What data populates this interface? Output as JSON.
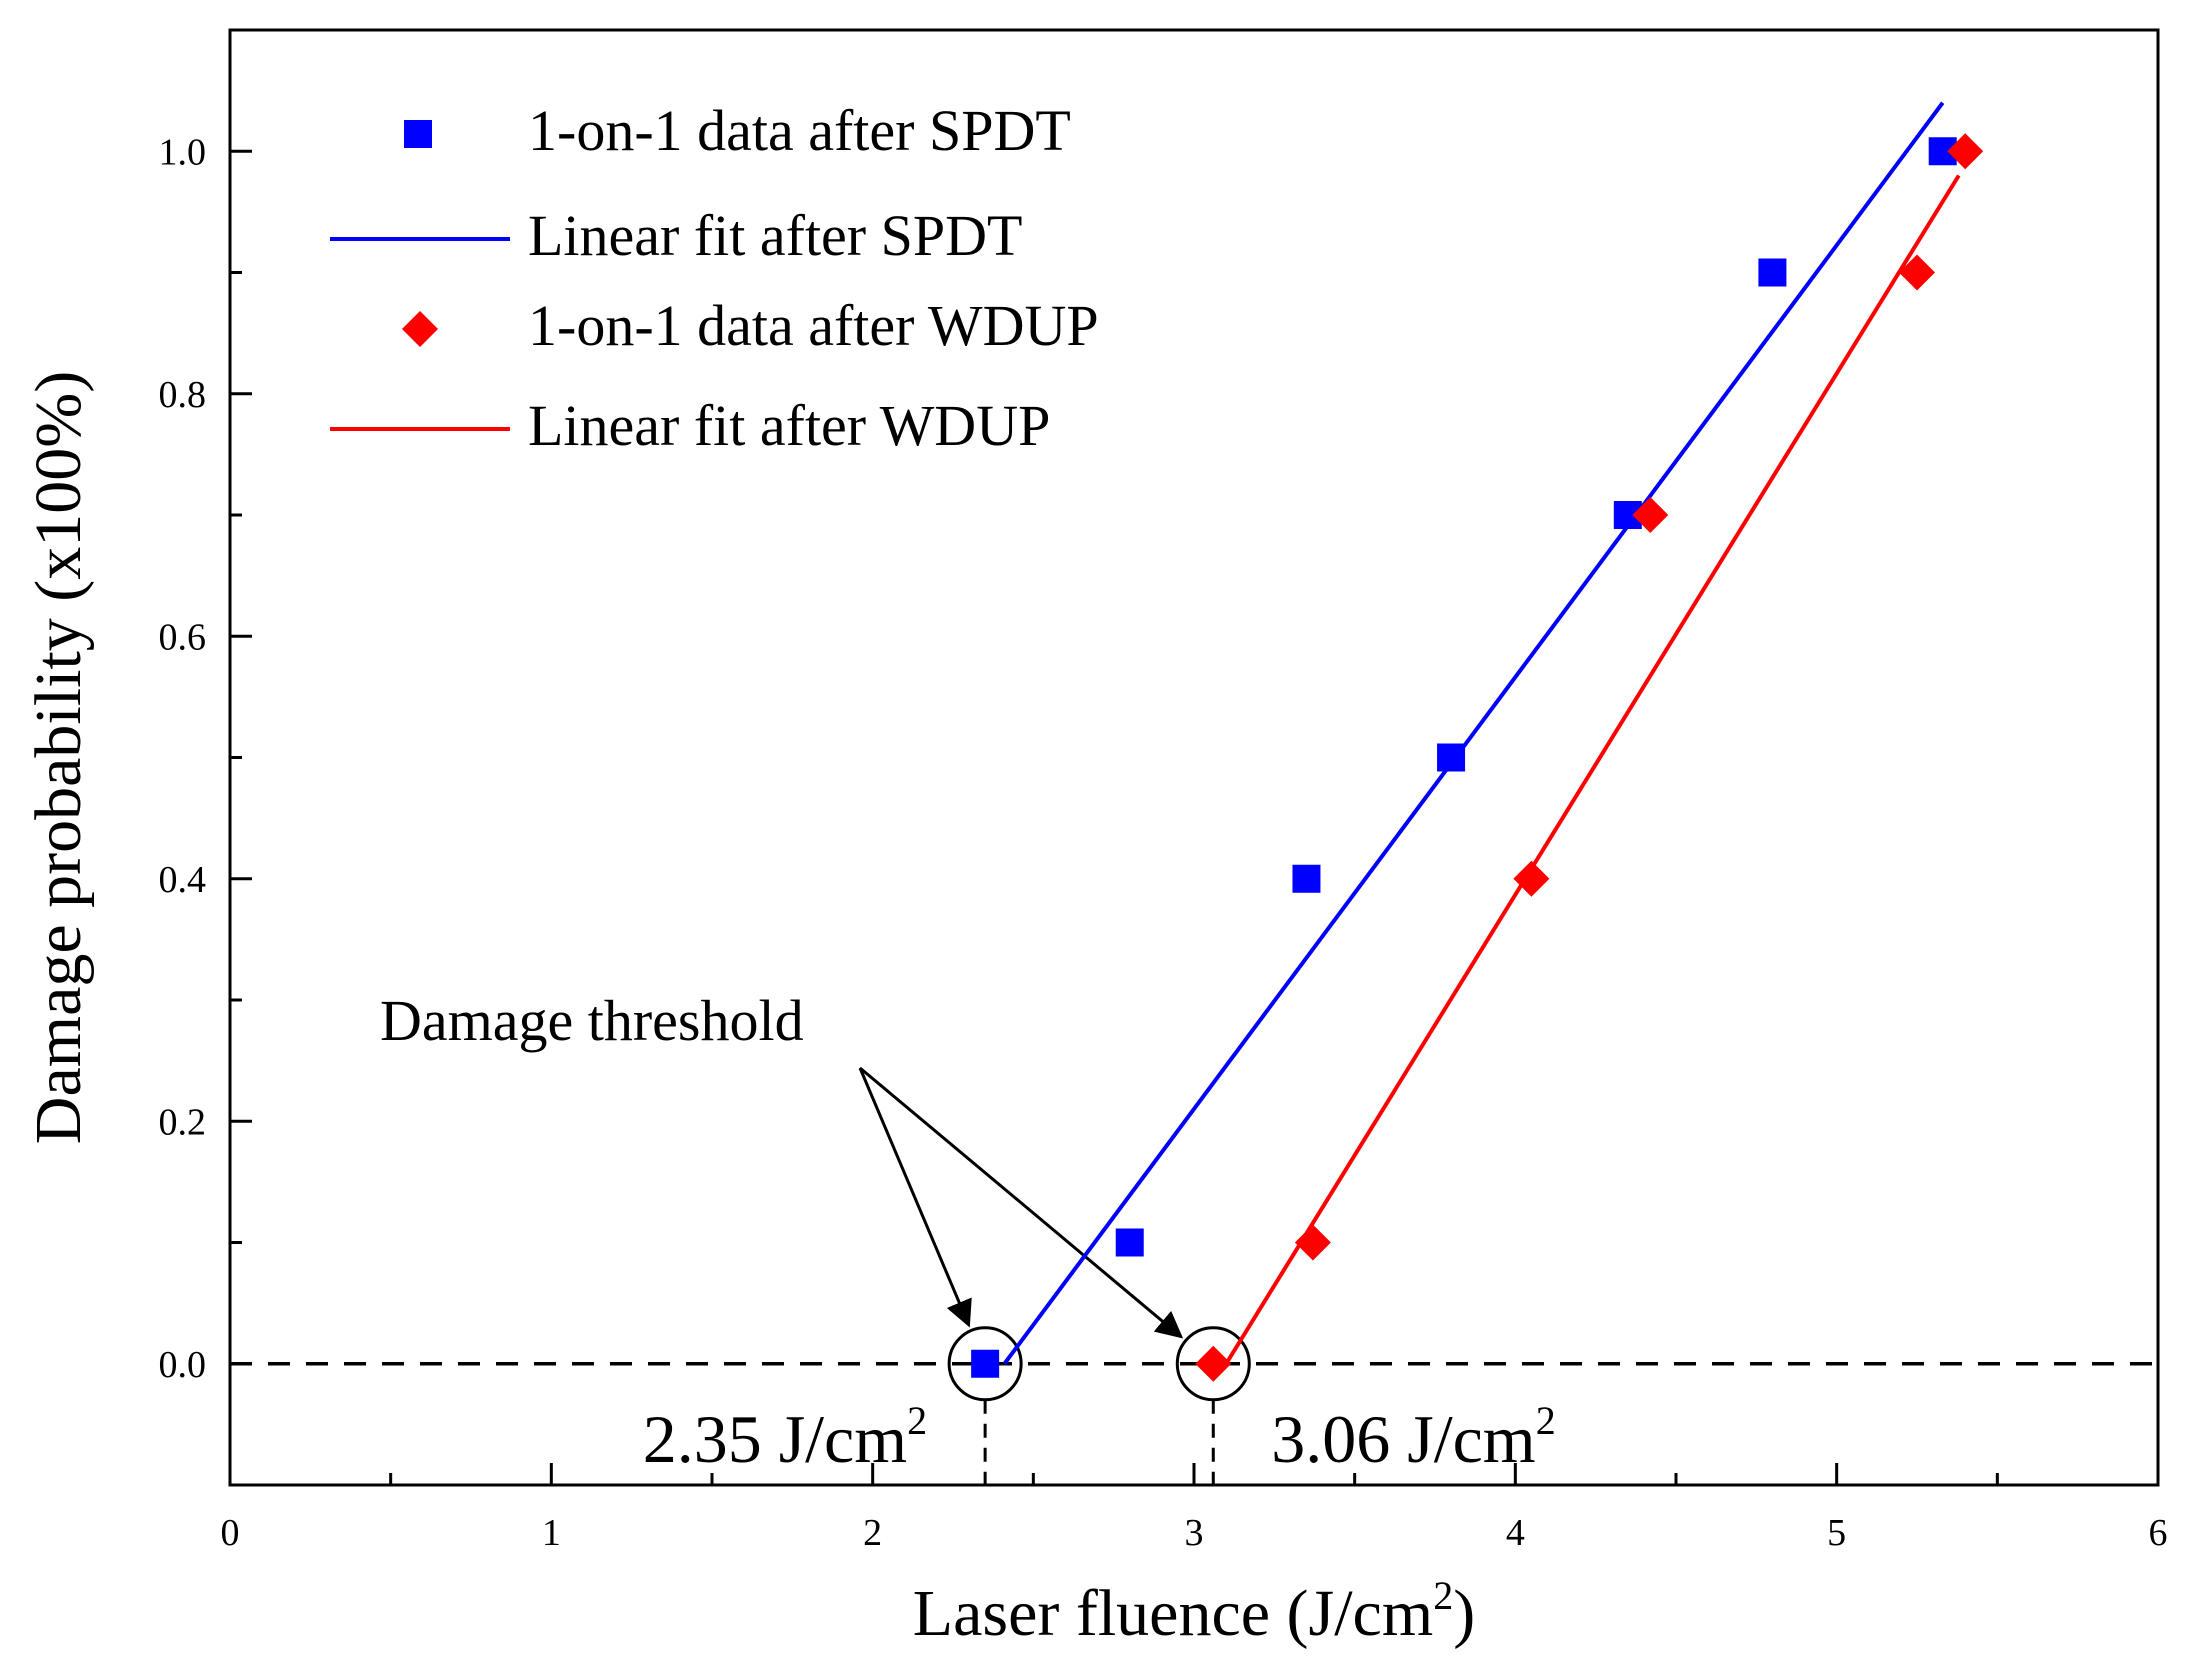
{
  "chart_data": {
    "type": "scatter",
    "xlabel": "Laser fluence (J/cm²)",
    "ylabel": "Damage probability (x100%)",
    "xlim": [
      0,
      6
    ],
    "ylim": [
      -0.1,
      1.1
    ],
    "xticks": [
      0,
      1,
      2,
      3,
      4,
      5,
      6
    ],
    "xtick_labels": [
      "0",
      "1",
      "2",
      "3",
      "4",
      "5",
      "6"
    ],
    "yticks": [
      0.0,
      0.2,
      0.4,
      0.6,
      0.8,
      1.0
    ],
    "ytick_labels": [
      "0.0",
      "0.2",
      "0.4",
      "0.6",
      "0.8",
      "1.0"
    ],
    "grid": false,
    "legend_position": "top-left",
    "series": [
      {
        "name": "1-on-1 data after SPDT",
        "kind": "scatter",
        "marker": "square",
        "color": "#0000ff",
        "x": [
          2.35,
          2.8,
          3.35,
          3.8,
          4.35,
          4.8,
          5.33
        ],
        "y": [
          0.0,
          0.1,
          0.4,
          0.5,
          0.7,
          0.9,
          1.0
        ]
      },
      {
        "name": "Linear fit after SPDT",
        "kind": "line",
        "color": "#0000ff",
        "x": [
          2.41,
          5.33
        ],
        "y": [
          0.0,
          1.04
        ]
      },
      {
        "name": "1-on-1 data after WDUP",
        "kind": "scatter",
        "marker": "diamond",
        "color": "#ff0000",
        "x": [
          3.06,
          3.37,
          4.05,
          4.42,
          5.25,
          5.4
        ],
        "y": [
          0.0,
          0.1,
          0.4,
          0.7,
          0.9,
          1.0
        ]
      },
      {
        "name": "Linear fit after WDUP",
        "kind": "line",
        "color": "#ff0000",
        "x": [
          3.1,
          5.38
        ],
        "y": [
          0.0,
          0.98
        ]
      }
    ],
    "reference_line": {
      "y": 0.0,
      "style": "dashed",
      "color": "#000000"
    },
    "annotations": {
      "label": "Damage threshold",
      "thresholds": [
        {
          "x": 2.35,
          "text": "2.35 J/cm",
          "sup": "2"
        },
        {
          "x": 3.06,
          "text": "3.06 J/cm",
          "sup": "2"
        }
      ]
    }
  }
}
